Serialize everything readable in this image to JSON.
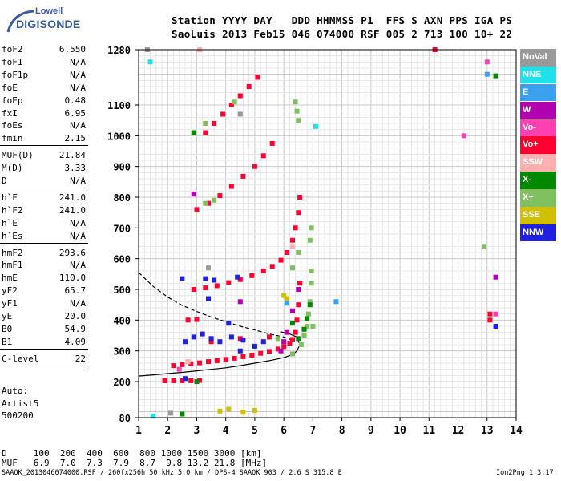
{
  "logo": {
    "line1": "Lowell",
    "line2": "DIGISONDE"
  },
  "header": {
    "line1": "Station YYYY DAY   DDD HHMMSS P1  FFS S AXN PPS IGA PS",
    "line2": "SaoLuis 2013 Feb15 046 074000 RSF 005 2 713 100 10+ 22"
  },
  "params_group1": [
    {
      "k": "foF2",
      "v": "6.550"
    },
    {
      "k": "foF1",
      "v": "N/A"
    },
    {
      "k": "foF1p",
      "v": "N/A"
    },
    {
      "k": "foE",
      "v": "N/A"
    },
    {
      "k": "foEp",
      "v": "0.48"
    },
    {
      "k": "fxI",
      "v": "6.95"
    },
    {
      "k": "foEs",
      "v": "N/A"
    },
    {
      "k": "fmin",
      "v": "2.15"
    }
  ],
  "params_group2": [
    {
      "k": "MUF(D)",
      "v": "21.84"
    },
    {
      "k": "M(D)",
      "v": "3.33"
    },
    {
      "k": "D",
      "v": "N/A"
    }
  ],
  "params_group3": [
    {
      "k": "h`F",
      "v": "241.0"
    },
    {
      "k": "h`F2",
      "v": "241.0"
    },
    {
      "k": "h`E",
      "v": "N/A"
    },
    {
      "k": "h`Es",
      "v": "N/A"
    }
  ],
  "params_group4": [
    {
      "k": "hmF2",
      "v": "293.6"
    },
    {
      "k": "hmF1",
      "v": "N/A"
    },
    {
      "k": "hmE",
      "v": "110.0"
    },
    {
      "k": "yF2",
      "v": "65.7"
    },
    {
      "k": "yF1",
      "v": "N/A"
    },
    {
      "k": "yE",
      "v": "20.0"
    },
    {
      "k": "B0",
      "v": "54.9"
    },
    {
      "k": "B1",
      "v": "4.09"
    }
  ],
  "params_group5": [
    {
      "k": "C-level",
      "v": "22"
    }
  ],
  "auto": {
    "line1": "Auto:",
    "line2": "Artist5",
    "line3": "500200"
  },
  "bottom": {
    "d_row": "D     100  200  400  600  800 1000 1500 3000 [km]",
    "muf_row": "MUF   6.9  7.0  7.3  7.9  8.7  9.8 13.2 21.8 [MHz]"
  },
  "footer": {
    "left": "SAAOK_2013046074000.RSF / 260fx256h 50 kHz 5.0 km / DPS-4 SAAOK 903 / 2.6 S 315.8 E",
    "right": "Ion2Png 1.3.17"
  },
  "legend": [
    {
      "label": "NoVal",
      "color": "#9a9a9a"
    },
    {
      "label": "NNE",
      "color": "#20e0e8"
    },
    {
      "label": "E",
      "color": "#3aa0f0"
    },
    {
      "label": "W",
      "color": "#b000b0"
    },
    {
      "label": "Vo-",
      "color": "#ff40b0"
    },
    {
      "label": "Vo+",
      "color": "#ff0033"
    },
    {
      "label": "SSW",
      "color": "#ffb0b0"
    },
    {
      "label": "X-",
      "color": "#008800"
    },
    {
      "label": "X+",
      "color": "#80c060"
    },
    {
      "label": "SSE",
      "color": "#d0c000"
    },
    {
      "label": "NNW",
      "color": "#2020dd"
    }
  ],
  "chart_data": {
    "type": "scatter",
    "title": "",
    "xlabel": "",
    "ylabel": "",
    "xlim": [
      1,
      14
    ],
    "ylim": [
      80,
      1280
    ],
    "x_ticks": [
      1,
      2,
      3,
      4,
      5,
      6,
      7,
      8,
      9,
      10,
      11,
      12,
      13,
      14
    ],
    "y_ticks": [
      80,
      200,
      300,
      400,
      500,
      600,
      700,
      800,
      900,
      1000,
      1100,
      1280
    ],
    "grid": true,
    "series": [
      {
        "name": "Vo+",
        "color": "#ff0033",
        "points": [
          [
            2.2,
            252
          ],
          [
            2.5,
            255
          ],
          [
            2.8,
            258
          ],
          [
            3.1,
            261
          ],
          [
            3.4,
            265
          ],
          [
            3.7,
            268
          ],
          [
            4.0,
            272
          ],
          [
            4.3,
            276
          ],
          [
            4.6,
            281
          ],
          [
            4.9,
            286
          ],
          [
            5.2,
            292
          ],
          [
            5.5,
            298
          ],
          [
            5.8,
            306
          ],
          [
            6.0,
            314
          ],
          [
            6.2,
            325
          ],
          [
            6.3,
            337
          ],
          [
            6.4,
            360
          ],
          [
            6.45,
            400
          ],
          [
            6.5,
            450
          ],
          [
            6.55,
            520
          ],
          [
            1.9,
            203
          ],
          [
            2.2,
            203
          ],
          [
            2.5,
            203
          ],
          [
            2.8,
            203
          ],
          [
            3.1,
            204
          ],
          [
            2.9,
            500
          ],
          [
            3.3,
            505
          ],
          [
            3.7,
            512
          ],
          [
            4.1,
            522
          ],
          [
            4.5,
            532
          ],
          [
            4.9,
            545
          ],
          [
            5.3,
            560
          ],
          [
            5.6,
            575
          ],
          [
            5.9,
            595
          ],
          [
            6.1,
            620
          ],
          [
            6.3,
            660
          ],
          [
            6.4,
            700
          ],
          [
            6.5,
            750
          ],
          [
            6.55,
            800
          ],
          [
            3.0,
            760
          ],
          [
            3.4,
            780
          ],
          [
            3.8,
            805
          ],
          [
            4.2,
            835
          ],
          [
            4.6,
            868
          ],
          [
            5.0,
            900
          ],
          [
            5.3,
            935
          ],
          [
            5.6,
            975
          ],
          [
            3.3,
            1010
          ],
          [
            3.6,
            1040
          ],
          [
            3.9,
            1070
          ],
          [
            4.2,
            1100
          ],
          [
            4.5,
            1130
          ],
          [
            4.8,
            1160
          ],
          [
            5.1,
            1190
          ],
          [
            3.5,
            330
          ],
          [
            4.5,
            340
          ],
          [
            5.5,
            345
          ],
          [
            2.7,
            400
          ],
          [
            3.0,
            402
          ],
          [
            11.2,
            1280
          ],
          [
            13.1,
            420
          ],
          [
            13.1,
            400
          ]
        ]
      },
      {
        "name": "X+",
        "color": "#80c060",
        "points": [
          [
            6.6,
            320
          ],
          [
            6.7,
            350
          ],
          [
            6.8,
            380
          ],
          [
            6.85,
            420
          ],
          [
            6.9,
            460
          ],
          [
            6.95,
            520
          ],
          [
            6.95,
            560
          ],
          [
            7.0,
            380
          ],
          [
            6.9,
            660
          ],
          [
            6.95,
            700
          ],
          [
            6.3,
            570
          ],
          [
            6.5,
            620
          ],
          [
            6.4,
            1110
          ],
          [
            6.5,
            1050
          ],
          [
            6.45,
            1080
          ],
          [
            5.8,
            340
          ],
          [
            6.0,
            330
          ],
          [
            6.3,
            290
          ],
          [
            3.3,
            780
          ],
          [
            3.6,
            790
          ],
          [
            3.3,
            1040
          ],
          [
            4.3,
            1110
          ],
          [
            12.9,
            640
          ]
        ]
      },
      {
        "name": "NNW",
        "color": "#2020dd",
        "points": [
          [
            2.6,
            330
          ],
          [
            2.9,
            345
          ],
          [
            3.2,
            355
          ],
          [
            3.5,
            340
          ],
          [
            3.8,
            330
          ],
          [
            4.2,
            345
          ],
          [
            4.6,
            335
          ],
          [
            5.0,
            315
          ],
          [
            5.3,
            330
          ],
          [
            4.1,
            390
          ],
          [
            4.5,
            300
          ],
          [
            2.5,
            535
          ],
          [
            3.3,
            535
          ],
          [
            3.6,
            530
          ],
          [
            4.4,
            540
          ],
          [
            2.6,
            210
          ],
          [
            3.4,
            470
          ],
          [
            13.3,
            380
          ]
        ]
      },
      {
        "name": "X-",
        "color": "#008800",
        "points": [
          [
            6.5,
            340
          ],
          [
            6.7,
            370
          ],
          [
            6.8,
            405
          ],
          [
            6.9,
            450
          ],
          [
            6.3,
            390
          ],
          [
            13.3,
            1195
          ],
          [
            2.9,
            1010
          ],
          [
            3.0,
            200
          ],
          [
            2.5,
            92
          ]
        ]
      },
      {
        "name": "W",
        "color": "#b000b0",
        "points": [
          [
            5.9,
            300
          ],
          [
            6.0,
            330
          ],
          [
            6.1,
            360
          ],
          [
            6.3,
            430
          ],
          [
            6.5,
            500
          ],
          [
            13.3,
            540
          ],
          [
            4.5,
            460
          ],
          [
            2.9,
            810
          ]
        ]
      },
      {
        "name": "SSE",
        "color": "#d0c000",
        "points": [
          [
            3.8,
            102
          ],
          [
            4.1,
            108
          ],
          [
            4.6,
            98
          ],
          [
            5.0,
            104
          ],
          [
            6.0,
            480
          ],
          [
            6.1,
            470
          ]
        ]
      },
      {
        "name": "NNE",
        "color": "#20e0e8",
        "points": [
          [
            1.4,
            1240
          ],
          [
            7.1,
            1030
          ],
          [
            1.5,
            85
          ]
        ]
      },
      {
        "name": "Vo-",
        "color": "#ff40b0",
        "points": [
          [
            12.2,
            1000
          ],
          [
            13.0,
            1240
          ],
          [
            13.3,
            420
          ],
          [
            2.4,
            240
          ]
        ]
      },
      {
        "name": "SSW",
        "color": "#ffb0b0",
        "points": [
          [
            3.1,
            1280
          ],
          [
            2.7,
            265
          ],
          [
            6.3,
            640
          ]
        ]
      },
      {
        "name": "E",
        "color": "#3aa0f0",
        "points": [
          [
            6.1,
            455
          ],
          [
            7.8,
            460
          ],
          [
            13.0,
            1200
          ]
        ]
      },
      {
        "name": "NoVal",
        "color": "#9a9a9a",
        "points": [
          [
            1.3,
            1280
          ],
          [
            2.1,
            95
          ],
          [
            4.5,
            1070
          ],
          [
            3.4,
            570
          ]
        ]
      }
    ],
    "curves": [
      {
        "name": "profile",
        "style": "solid",
        "x": [
          1,
          1.5,
          2,
          2.5,
          3,
          3.5,
          4,
          4.5,
          5,
          5.5,
          6,
          6.3,
          6.45,
          6.55,
          6.45,
          6.2,
          5.9
        ],
        "y": [
          218,
          222,
          226,
          230,
          235,
          240,
          245,
          252,
          260,
          268,
          278,
          288,
          300,
          320,
          345,
          355,
          362
        ]
      },
      {
        "name": "model",
        "style": "dashed",
        "x": [
          1,
          1.5,
          2,
          2.5,
          3,
          3.5,
          4,
          4.5,
          5,
          5.5,
          6,
          6.3
        ],
        "y": [
          555,
          510,
          475,
          448,
          428,
          410,
          395,
          380,
          368,
          355,
          345,
          335
        ]
      }
    ]
  }
}
